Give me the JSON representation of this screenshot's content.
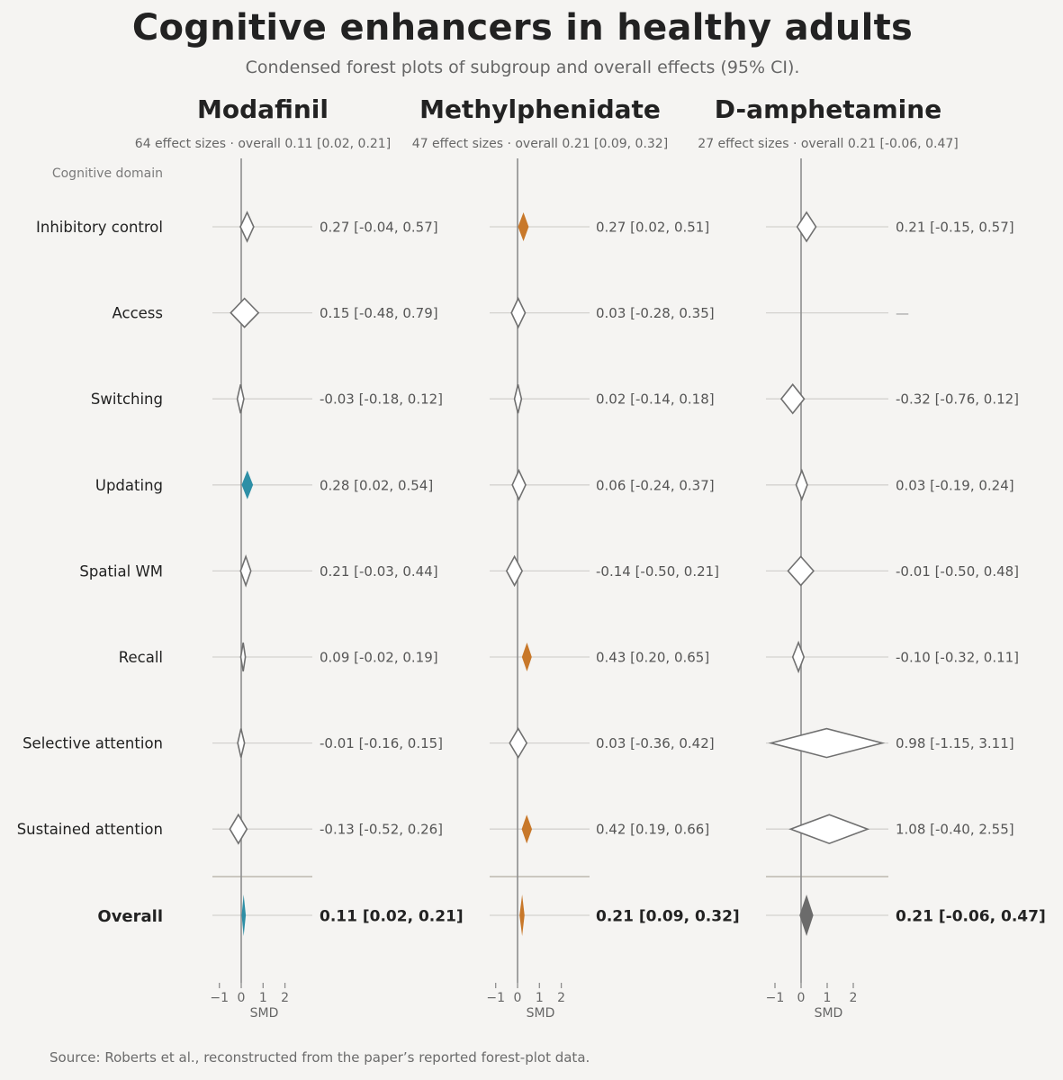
{
  "title": "Cognitive enhancers in healthy adults",
  "subtitle": "Condensed forest plots of subgroup and overall effects (95% CI).",
  "source": "Source: Roberts et al., reconstructed from the paper’s reported forest-plot data.",
  "colors": {
    "modafinil": "#2e8fa6",
    "methylphenidate": "#c8782a",
    "d_amphetamine": "#6b6b6b",
    "outline": "#707070",
    "zero_line": "#8e8e8e",
    "row_line": "#d4d2cf",
    "separator": "#bdb8b0"
  },
  "chart_data": {
    "type": "forest",
    "title": "Cognitive enhancers in healthy adults",
    "subtitle": "Condensed forest plots of subgroup and overall effects (95% CI).",
    "domain_header": "Cognitive domain",
    "domains": [
      "Inhibitory control",
      "Access",
      "Switching",
      "Updating",
      "Spatial WM",
      "Recall",
      "Selective attention",
      "Sustained attention"
    ],
    "overall_label": "Overall",
    "xlabel": "SMD",
    "xlim": [
      -1.5,
      3.2
    ],
    "xticks": [
      -1,
      0,
      1,
      2
    ],
    "xtick_labels": [
      "−1",
      "0",
      "1",
      "2"
    ],
    "panels": [
      {
        "name": "Modafinil",
        "color_key": "modafinil",
        "summary": "64 effect sizes · overall 0.11 [0.02, 0.21]",
        "rows": [
          {
            "est": 0.27,
            "lo": -0.04,
            "hi": 0.57,
            "label": "0.27 [-0.04, 0.57]",
            "sig": false
          },
          {
            "est": 0.15,
            "lo": -0.48,
            "hi": 0.79,
            "label": "0.15 [-0.48, 0.79]",
            "sig": false
          },
          {
            "est": -0.03,
            "lo": -0.18,
            "hi": 0.12,
            "label": "-0.03 [-0.18, 0.12]",
            "sig": false
          },
          {
            "est": 0.28,
            "lo": 0.02,
            "hi": 0.54,
            "label": "0.28 [0.02, 0.54]",
            "sig": true
          },
          {
            "est": 0.21,
            "lo": -0.03,
            "hi": 0.44,
            "label": "0.21 [-0.03, 0.44]",
            "sig": false
          },
          {
            "est": 0.09,
            "lo": -0.02,
            "hi": 0.19,
            "label": "0.09 [-0.02, 0.19]",
            "sig": false
          },
          {
            "est": -0.01,
            "lo": -0.16,
            "hi": 0.15,
            "label": "-0.01 [-0.16, 0.15]",
            "sig": false
          },
          {
            "est": -0.13,
            "lo": -0.52,
            "hi": 0.26,
            "label": "-0.13 [-0.52, 0.26]",
            "sig": false
          }
        ],
        "overall": {
          "est": 0.11,
          "lo": 0.02,
          "hi": 0.21,
          "label": "0.11 [0.02, 0.21]",
          "sig": true
        }
      },
      {
        "name": "Methylphenidate",
        "color_key": "methylphenidate",
        "summary": "47 effect sizes · overall 0.21 [0.09, 0.32]",
        "rows": [
          {
            "est": 0.27,
            "lo": 0.02,
            "hi": 0.51,
            "label": "0.27 [0.02, 0.51]",
            "sig": true
          },
          {
            "est": 0.03,
            "lo": -0.28,
            "hi": 0.35,
            "label": "0.03 [-0.28, 0.35]",
            "sig": false
          },
          {
            "est": 0.02,
            "lo": -0.14,
            "hi": 0.18,
            "label": "0.02 [-0.14, 0.18]",
            "sig": false
          },
          {
            "est": 0.06,
            "lo": -0.24,
            "hi": 0.37,
            "label": "0.06 [-0.24, 0.37]",
            "sig": false
          },
          {
            "est": -0.14,
            "lo": -0.5,
            "hi": 0.21,
            "label": "-0.14 [-0.50, 0.21]",
            "sig": false
          },
          {
            "est": 0.43,
            "lo": 0.2,
            "hi": 0.65,
            "label": "0.43 [0.20, 0.65]",
            "sig": true
          },
          {
            "est": 0.03,
            "lo": -0.36,
            "hi": 0.42,
            "label": "0.03 [-0.36, 0.42]",
            "sig": false
          },
          {
            "est": 0.42,
            "lo": 0.19,
            "hi": 0.66,
            "label": "0.42 [0.19, 0.66]",
            "sig": true
          }
        ],
        "overall": {
          "est": 0.21,
          "lo": 0.09,
          "hi": 0.32,
          "label": "0.21 [0.09, 0.32]",
          "sig": true
        }
      },
      {
        "name": "D-amphetamine",
        "color_key": "d_amphetamine",
        "summary": "27 effect sizes · overall 0.21 [-0.06, 0.47]",
        "rows": [
          {
            "est": 0.21,
            "lo": -0.15,
            "hi": 0.57,
            "label": "0.21 [-0.15, 0.57]",
            "sig": false
          },
          {
            "est": null,
            "lo": null,
            "hi": null,
            "label": "—",
            "sig": false
          },
          {
            "est": -0.32,
            "lo": -0.76,
            "hi": 0.12,
            "label": "-0.32 [-0.76, 0.12]",
            "sig": false
          },
          {
            "est": 0.03,
            "lo": -0.19,
            "hi": 0.24,
            "label": "0.03 [-0.19, 0.24]",
            "sig": false
          },
          {
            "est": -0.01,
            "lo": -0.5,
            "hi": 0.48,
            "label": "-0.01 [-0.50, 0.48]",
            "sig": false
          },
          {
            "est": -0.1,
            "lo": -0.32,
            "hi": 0.11,
            "label": "-0.10 [-0.32, 0.11]",
            "sig": false
          },
          {
            "est": 0.98,
            "lo": -1.15,
            "hi": 3.11,
            "label": "0.98 [-1.15, 3.11]",
            "sig": false
          },
          {
            "est": 1.08,
            "lo": -0.4,
            "hi": 2.55,
            "label": "1.08 [-0.40, 2.55]",
            "sig": false
          }
        ],
        "overall": {
          "est": 0.21,
          "lo": -0.06,
          "hi": 0.47,
          "label": "0.21 [-0.06, 0.47]",
          "sig": false
        }
      }
    ]
  }
}
